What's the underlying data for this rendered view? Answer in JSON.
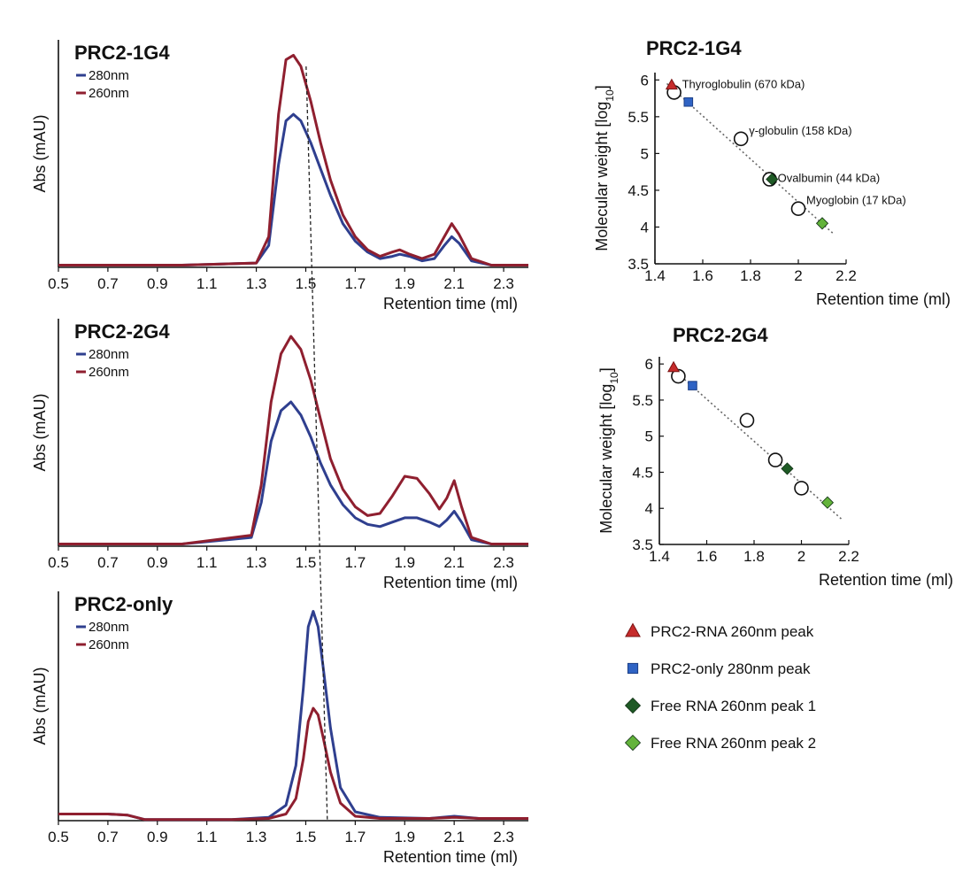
{
  "chart_data": [
    {
      "type": "line",
      "title": "PRC2-1G4",
      "xlabel": "Retention time (ml)",
      "ylabel": "Abs (mAU)",
      "x_ticks": [
        "0.5",
        "0.7",
        "0.9",
        "1.1",
        "1.3",
        "1.5",
        "1.7",
        "1.9",
        "2.1",
        "2.3"
      ],
      "xlim": [
        0.5,
        2.4
      ],
      "ylim": [
        0,
        100
      ],
      "series": [
        {
          "name": "280nm",
          "color": "#2f3f8f",
          "x": [
            0.5,
            1.0,
            1.3,
            1.35,
            1.39,
            1.42,
            1.45,
            1.48,
            1.52,
            1.56,
            1.6,
            1.65,
            1.7,
            1.75,
            1.8,
            1.85,
            1.88,
            1.92,
            1.97,
            2.02,
            2.06,
            2.09,
            2.12,
            2.17,
            2.25,
            2.4
          ],
          "y": [
            1,
            1,
            2,
            10,
            47,
            67,
            70,
            67,
            57,
            45,
            33,
            20,
            12,
            7,
            4,
            5,
            6,
            5,
            3,
            4,
            10,
            14,
            11,
            3,
            1,
            1
          ]
        },
        {
          "name": "260nm",
          "color": "#8f1f2f",
          "x": [
            0.5,
            1.0,
            1.3,
            1.35,
            1.39,
            1.42,
            1.45,
            1.48,
            1.52,
            1.56,
            1.6,
            1.65,
            1.7,
            1.75,
            1.8,
            1.85,
            1.88,
            1.92,
            1.97,
            2.02,
            2.06,
            2.09,
            2.12,
            2.17,
            2.25,
            2.4
          ],
          "y": [
            1,
            1,
            2,
            14,
            70,
            95,
            97,
            92,
            76,
            57,
            40,
            24,
            14,
            8,
            5,
            7,
            8,
            6,
            4,
            6,
            14,
            20,
            15,
            4,
            1,
            1
          ]
        }
      ]
    },
    {
      "type": "line",
      "title": "PRC2-2G4",
      "xlabel": "Retention time (ml)",
      "ylabel": "Abs (mAU)",
      "x_ticks": [
        "0.5",
        "0.7",
        "0.9",
        "1.1",
        "1.3",
        "1.5",
        "1.7",
        "1.9",
        "2.1",
        "2.3"
      ],
      "xlim": [
        0.5,
        2.4
      ],
      "ylim": [
        0,
        100
      ],
      "series": [
        {
          "name": "280nm",
          "color": "#2f3f8f",
          "x": [
            0.5,
            1.0,
            1.28,
            1.32,
            1.36,
            1.4,
            1.44,
            1.48,
            1.52,
            1.56,
            1.6,
            1.65,
            1.7,
            1.75,
            1.8,
            1.85,
            1.9,
            1.95,
            2.0,
            2.04,
            2.07,
            2.1,
            2.13,
            2.17,
            2.25,
            2.4
          ],
          "y": [
            1,
            1,
            4,
            20,
            48,
            62,
            66,
            60,
            50,
            38,
            28,
            19,
            13,
            10,
            9,
            11,
            13,
            13,
            11,
            9,
            12,
            16,
            11,
            3,
            1,
            1
          ]
        },
        {
          "name": "260nm",
          "color": "#8f1f2f",
          "x": [
            0.5,
            1.0,
            1.28,
            1.32,
            1.36,
            1.4,
            1.44,
            1.48,
            1.52,
            1.56,
            1.6,
            1.65,
            1.7,
            1.75,
            1.8,
            1.85,
            1.9,
            1.95,
            2.0,
            2.04,
            2.07,
            2.1,
            2.13,
            2.17,
            2.25,
            2.4
          ],
          "y": [
            1,
            1,
            5,
            28,
            66,
            88,
            96,
            90,
            76,
            58,
            40,
            26,
            18,
            14,
            15,
            23,
            32,
            31,
            24,
            17,
            22,
            30,
            18,
            4,
            1,
            1
          ]
        }
      ]
    },
    {
      "type": "line",
      "title": "PRC2-only",
      "xlabel": "Retention time (ml)",
      "ylabel": "Abs (mAU)",
      "x_ticks": [
        "0.5",
        "0.7",
        "0.9",
        "1.1",
        "1.3",
        "1.5",
        "1.7",
        "1.9",
        "2.1",
        "2.3"
      ],
      "xlim": [
        0.5,
        2.4
      ],
      "ylim": [
        0,
        100
      ],
      "series": [
        {
          "name": "280nm",
          "color": "#2f3f8f",
          "x": [
            0.5,
            0.7,
            0.78,
            0.85,
            1.0,
            1.2,
            1.35,
            1.42,
            1.46,
            1.49,
            1.51,
            1.53,
            1.55,
            1.57,
            1.6,
            1.64,
            1.7,
            1.8,
            2.0,
            2.1,
            2.2,
            2.4
          ],
          "y": [
            3,
            3,
            2.5,
            0.5,
            0.5,
            0.5,
            1.5,
            7,
            25,
            60,
            88,
            95,
            88,
            70,
            42,
            15,
            4,
            1.5,
            1,
            2,
            1,
            1
          ]
        },
        {
          "name": "260nm",
          "color": "#8f1f2f",
          "x": [
            0.5,
            0.7,
            0.78,
            0.85,
            1.0,
            1.2,
            1.35,
            1.42,
            1.46,
            1.49,
            1.51,
            1.53,
            1.55,
            1.57,
            1.6,
            1.64,
            1.7,
            1.8,
            2.0,
            2.1,
            2.2,
            2.4
          ],
          "y": [
            3,
            3,
            2.5,
            0.5,
            0.5,
            0.5,
            1,
            3,
            10,
            28,
            45,
            51,
            48,
            38,
            22,
            8,
            2,
            1,
            1,
            1.5,
            1,
            1
          ]
        }
      ]
    },
    {
      "type": "scatter",
      "title": "PRC2-1G4",
      "xlabel": "Retention time (ml)",
      "ylabel": "Molecular weight [log10]",
      "x_ticks": [
        "1.4",
        "1.6",
        "1.8",
        "2",
        "2.2"
      ],
      "y_ticks": [
        "3.5",
        "4",
        "4.5",
        "5",
        "5.5",
        "6"
      ],
      "xlim": [
        1.4,
        2.2
      ],
      "ylim": [
        3.5,
        6.1
      ],
      "standards": [
        {
          "x": 1.48,
          "y": 5.83,
          "label": "Thyroglobulin (670 kDa)"
        },
        {
          "x": 1.76,
          "y": 5.2,
          "label": "γ-globulin  (158 kDa)"
        },
        {
          "x": 1.88,
          "y": 4.65,
          "label": "Ovalbumin (44 kDa)"
        },
        {
          "x": 2.0,
          "y": 4.25,
          "label": "Myoglobin  (17 kDa)"
        }
      ],
      "peaks": [
        {
          "marker": "triangle",
          "color": "#c62b2b",
          "x": 1.47,
          "y": 5.93
        },
        {
          "marker": "square",
          "color": "#2f63c4",
          "x": 1.54,
          "y": 5.7
        },
        {
          "marker": "diamond",
          "color": "#1e5a25",
          "x": 1.89,
          "y": 4.65
        },
        {
          "marker": "diamond",
          "color": "#63b33b",
          "x": 2.1,
          "y": 4.05
        }
      ],
      "fit": {
        "x": [
          1.45,
          2.15
        ],
        "y": [
          5.95,
          3.9
        ]
      }
    },
    {
      "type": "scatter",
      "title": "PRC2-2G4",
      "xlabel": "Retention time (ml)",
      "ylabel": "Molecular weight [log10]",
      "x_ticks": [
        "1.4",
        "1.6",
        "1.8",
        "2",
        "2.2"
      ],
      "y_ticks": [
        "3.5",
        "4",
        "4.5",
        "5",
        "5.5",
        "6"
      ],
      "xlim": [
        1.4,
        2.2
      ],
      "ylim": [
        3.5,
        6.1
      ],
      "standards": [
        {
          "x": 1.48,
          "y": 5.83
        },
        {
          "x": 1.77,
          "y": 5.22
        },
        {
          "x": 1.89,
          "y": 4.67
        },
        {
          "x": 2.0,
          "y": 4.28
        }
      ],
      "peaks": [
        {
          "marker": "triangle",
          "color": "#c62b2b",
          "x": 1.46,
          "y": 5.95
        },
        {
          "marker": "square",
          "color": "#2f63c4",
          "x": 1.54,
          "y": 5.7
        },
        {
          "marker": "diamond",
          "color": "#1e5a25",
          "x": 1.94,
          "y": 4.55
        },
        {
          "marker": "diamond",
          "color": "#63b33b",
          "x": 2.11,
          "y": 4.08
        }
      ],
      "fit": {
        "x": [
          1.45,
          2.17
        ],
        "y": [
          5.95,
          3.85
        ]
      }
    }
  ],
  "legend_key": [
    {
      "marker": "triangle",
      "color": "#c62b2b",
      "label": "PRC2-RNA 260nm peak"
    },
    {
      "marker": "square",
      "color": "#2f63c4",
      "label": "PRC2-only  280nm peak"
    },
    {
      "marker": "diamond",
      "color": "#1e5a25",
      "label": "Free RNA 260nm peak 1"
    },
    {
      "marker": "diamond",
      "color": "#63b33b",
      "label": "Free RNA 260nm peak 2"
    }
  ],
  "reference_line_x": 1.53
}
